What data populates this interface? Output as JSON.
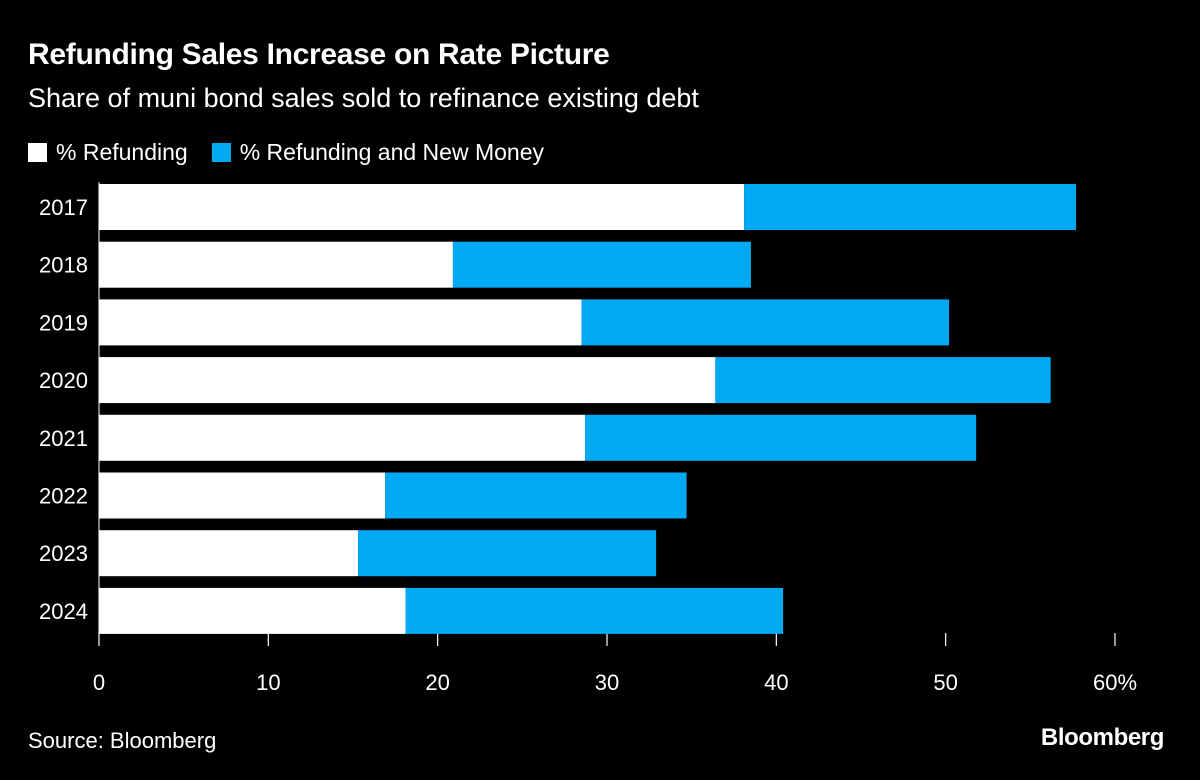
{
  "title": "Refunding Sales Increase on Rate Picture",
  "subtitle": "Share of muni bond sales sold to refinance existing debt",
  "legend": [
    {
      "label": "% Refunding",
      "color": "#ffffff"
    },
    {
      "label": "% Refunding and New Money",
      "color": "#00a9f4"
    }
  ],
  "source": "Source: Bloomberg",
  "brand": "Bloomberg",
  "chart_data": {
    "type": "bar",
    "orientation": "horizontal",
    "stacked": true,
    "categories": [
      "2017",
      "2018",
      "2019",
      "2020",
      "2021",
      "2022",
      "2023",
      "2024"
    ],
    "series": [
      {
        "name": "% Refunding",
        "color": "#ffffff",
        "values": [
          38.1,
          20.9,
          28.5,
          36.4,
          28.7,
          16.9,
          15.3,
          18.1
        ]
      },
      {
        "name": "% Refunding and New Money",
        "color": "#00a9f4",
        "values": [
          19.6,
          17.6,
          21.7,
          19.8,
          23.1,
          17.8,
          17.6,
          22.3
        ]
      }
    ],
    "xlim": [
      0,
      60
    ],
    "xticks": [
      0,
      10,
      20,
      30,
      40,
      50,
      60
    ],
    "xtick_labels": [
      "0",
      "10",
      "20",
      "30",
      "40",
      "50",
      "60%"
    ],
    "grid": false,
    "legend_position": "top-left"
  }
}
